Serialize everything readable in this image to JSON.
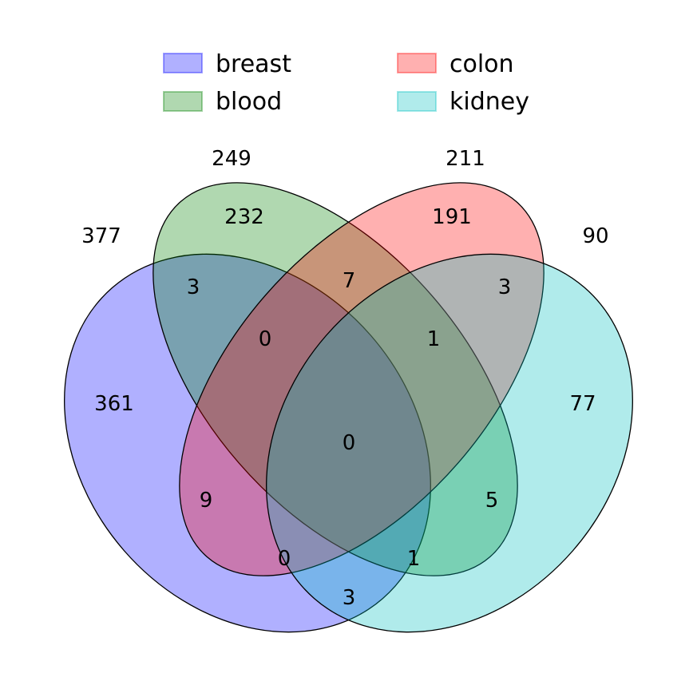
{
  "legend": [
    {
      "name": "breast",
      "color": "#0000ff"
    },
    {
      "name": "blood",
      "color": "#008000"
    },
    {
      "name": "colon",
      "color": "#ff0000"
    },
    {
      "name": "kidney",
      "color": "#00bfbf"
    }
  ],
  "totals": {
    "breast": "377",
    "blood": "249",
    "colon": "211",
    "kidney": "90"
  },
  "regions": {
    "breast_only": "361",
    "blood_only": "232",
    "colon_only": "191",
    "kidney_only": "77",
    "breast_blood": "3",
    "blood_colon": "7",
    "colon_kidney": "3",
    "breast_blood_colon": "0",
    "blood_colon_kidney": "1",
    "all_four": "0",
    "breast_colon": "9",
    "blood_kidney": "5",
    "breast_colon_kidney": "0",
    "breast_blood_kidney": "1",
    "breast_kidney": "3"
  }
}
